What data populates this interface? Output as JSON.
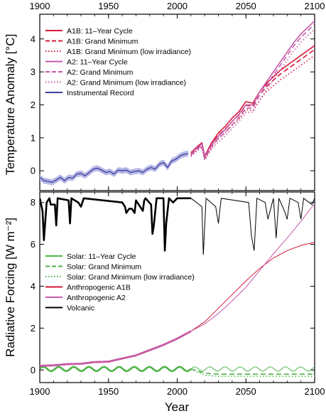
{
  "chart_data": [
    {
      "type": "line",
      "panel": "top",
      "ylabel": "Temperature Anomaly [°C]",
      "xlim": [
        1900,
        2100
      ],
      "ylim": [
        -0.6,
        4.75
      ],
      "x_ticks": [
        1900,
        1950,
        2000,
        2050,
        2100
      ],
      "y_ticks": [
        0,
        1,
        2,
        3,
        4
      ],
      "legend_position": "top-left",
      "colors": {
        "a1b": "#d6183a",
        "a2": "#c45aa8",
        "instrumental": "#3d3d9c",
        "instrumental_band": "#b7b7e6"
      },
      "series": [
        {
          "name": "A1B: 11–Year Cycle",
          "style": "solid",
          "color": "#d6183a",
          "x": [
            2010,
            2015,
            2018,
            2020,
            2025,
            2030,
            2035,
            2040,
            2045,
            2050,
            2055,
            2060,
            2065,
            2070,
            2075,
            2080,
            2085,
            2090,
            2095,
            2100
          ],
          "y": [
            0.55,
            0.75,
            0.85,
            0.45,
            0.85,
            1.15,
            1.35,
            1.6,
            1.8,
            2.1,
            2.05,
            2.4,
            2.65,
            2.85,
            3.05,
            3.2,
            3.35,
            3.5,
            3.65,
            3.8
          ]
        },
        {
          "name": "A1B: Grand Minimum",
          "style": "dashed",
          "color": "#d6183a",
          "x": [
            2010,
            2015,
            2018,
            2020,
            2025,
            2030,
            2035,
            2040,
            2045,
            2050,
            2055,
            2060,
            2065,
            2070,
            2075,
            2080,
            2085,
            2090,
            2095,
            2100
          ],
          "y": [
            0.5,
            0.7,
            0.8,
            0.42,
            0.8,
            1.08,
            1.27,
            1.5,
            1.7,
            1.99,
            1.95,
            2.3,
            2.55,
            2.75,
            2.93,
            3.08,
            3.23,
            3.38,
            3.53,
            3.68
          ]
        },
        {
          "name": "A1B: Grand Minimum (low irradiance)",
          "style": "dotted",
          "color": "#d6183a",
          "x": [
            2010,
            2015,
            2018,
            2020,
            2025,
            2030,
            2035,
            2040,
            2045,
            2050,
            2055,
            2060,
            2065,
            2070,
            2075,
            2080,
            2085,
            2090,
            2095,
            2100
          ],
          "y": [
            0.45,
            0.65,
            0.72,
            0.35,
            0.7,
            0.98,
            1.15,
            1.38,
            1.57,
            1.86,
            1.82,
            2.15,
            2.4,
            2.58,
            2.76,
            2.9,
            3.05,
            3.2,
            3.35,
            3.5
          ]
        },
        {
          "name": "A2:  11–Year Cycle",
          "style": "solid",
          "color": "#c45aa8",
          "x": [
            2010,
            2015,
            2018,
            2020,
            2025,
            2030,
            2035,
            2040,
            2045,
            2050,
            2055,
            2060,
            2065,
            2070,
            2075,
            2080,
            2085,
            2090,
            2095,
            2100
          ],
          "y": [
            0.52,
            0.72,
            0.82,
            0.42,
            0.8,
            1.05,
            1.25,
            1.5,
            1.72,
            2.0,
            2.0,
            2.4,
            2.7,
            3.0,
            3.3,
            3.6,
            3.9,
            4.15,
            4.35,
            4.55
          ]
        },
        {
          "name": "A2:  Grand Minimum",
          "style": "dashed",
          "color": "#c45aa8",
          "x": [
            2010,
            2015,
            2018,
            2020,
            2025,
            2030,
            2035,
            2040,
            2045,
            2050,
            2055,
            2060,
            2065,
            2070,
            2075,
            2080,
            2085,
            2090,
            2095,
            2100
          ],
          "y": [
            0.48,
            0.68,
            0.77,
            0.38,
            0.75,
            0.98,
            1.17,
            1.4,
            1.62,
            1.9,
            1.9,
            2.3,
            2.6,
            2.9,
            3.2,
            3.5,
            3.8,
            4.05,
            4.25,
            4.45
          ]
        },
        {
          "name": "A2:  Grand Minimum (low irradiance)",
          "style": "dotted",
          "color": "#c45aa8",
          "x": [
            2010,
            2015,
            2018,
            2020,
            2025,
            2030,
            2035,
            2040,
            2045,
            2050,
            2055,
            2060,
            2065,
            2070,
            2075,
            2080,
            2085,
            2090,
            2095,
            2100
          ],
          "y": [
            0.43,
            0.62,
            0.7,
            0.32,
            0.66,
            0.88,
            1.06,
            1.28,
            1.5,
            1.77,
            1.78,
            2.15,
            2.45,
            2.75,
            3.05,
            3.35,
            3.65,
            3.9,
            4.1,
            4.3
          ]
        },
        {
          "name": "Instrumental Record",
          "style": "solid",
          "color": "#3d3d9c",
          "x": [
            1900,
            1903,
            1906,
            1909,
            1912,
            1915,
            1918,
            1921,
            1924,
            1927,
            1930,
            1933,
            1936,
            1939,
            1942,
            1945,
            1948,
            1951,
            1954,
            1957,
            1960,
            1963,
            1966,
            1969,
            1972,
            1975,
            1978,
            1981,
            1984,
            1987,
            1990,
            1993,
            1996,
            1999,
            2002,
            2005,
            2008
          ],
          "y": [
            -0.2,
            -0.3,
            -0.32,
            -0.35,
            -0.28,
            -0.2,
            -0.3,
            -0.2,
            -0.22,
            -0.1,
            -0.08,
            -0.15,
            -0.05,
            0.05,
            0.08,
            0.02,
            -0.05,
            -0.02,
            -0.1,
            0.02,
            0.0,
            0.02,
            -0.05,
            -0.02,
            0.0,
            -0.05,
            0.05,
            0.1,
            0.05,
            0.2,
            0.25,
            0.1,
            0.3,
            0.35,
            0.45,
            0.5,
            0.52
          ]
        }
      ]
    },
    {
      "type": "line",
      "panel": "bottom",
      "xlabel": "Year",
      "ylabel": "Radiative Forcing [W m⁻²]",
      "xlim": [
        1900,
        2100
      ],
      "ylim": [
        -0.6,
        8.5
      ],
      "x_ticks": [
        1900,
        1950,
        2000,
        2050,
        2100
      ],
      "y_ticks": [
        0,
        2,
        4,
        6,
        8
      ],
      "legend_position": "center-left",
      "colors": {
        "solar": "#4fb34a",
        "anthro_a1b": "#d6183a",
        "anthro_a2": "#c45aa8",
        "volcanic": "#000000"
      },
      "series": [
        {
          "name": "Solar: 11–Year Cycle",
          "style": "solid",
          "color": "#4fb34a",
          "x": [
            1900,
            2100
          ],
          "y": [
            0.05,
            0.05
          ],
          "note_cycle": {
            "period_years": 11,
            "amplitude": 0.1
          }
        },
        {
          "name": "Solar: Grand Minimum",
          "style": "dashed",
          "color": "#4fb34a",
          "x": [
            2010,
            2020,
            2030,
            2040,
            2100
          ],
          "y": [
            0.05,
            -0.15,
            -0.2,
            -0.2,
            -0.2
          ]
        },
        {
          "name": "Solar: Grand Minimum (low irradiance)",
          "style": "dotted",
          "color": "#4fb34a",
          "x": [
            2010,
            2020,
            2030,
            2040,
            2100
          ],
          "y": [
            0.05,
            -0.25,
            -0.3,
            -0.3,
            -0.3
          ]
        },
        {
          "name": "Anthropogenic A1B",
          "style": "solid",
          "color": "#d6183a",
          "x": [
            1900,
            1910,
            1920,
            1930,
            1940,
            1950,
            1960,
            1970,
            1980,
            1990,
            2000,
            2010,
            2020,
            2030,
            2040,
            2050,
            2060,
            2070,
            2080,
            2090,
            2100
          ],
          "y": [
            0.2,
            0.22,
            0.28,
            0.3,
            0.38,
            0.4,
            0.55,
            0.7,
            0.95,
            1.2,
            1.5,
            1.85,
            2.3,
            2.95,
            3.6,
            4.25,
            4.85,
            5.35,
            5.7,
            5.95,
            6.1
          ]
        },
        {
          "name": "Anthropogenic A2",
          "style": "solid",
          "color": "#c45aa8",
          "x": [
            1900,
            1910,
            1920,
            1930,
            1940,
            1950,
            1960,
            1970,
            1980,
            1990,
            2000,
            2010,
            2020,
            2030,
            2040,
            2050,
            2060,
            2070,
            2080,
            2090,
            2100
          ],
          "y": [
            0.2,
            0.22,
            0.28,
            0.3,
            0.38,
            0.4,
            0.55,
            0.7,
            0.95,
            1.2,
            1.5,
            1.85,
            2.2,
            2.7,
            3.3,
            3.95,
            4.75,
            5.55,
            6.3,
            7.1,
            7.95
          ]
        },
        {
          "name": "Volcanic",
          "style": "solid",
          "color": "#000000",
          "x": [
            1900,
            1902,
            1903,
            1905,
            1907,
            1908,
            1911,
            1912,
            1913,
            1921,
            1922,
            1923,
            1928,
            1930,
            1932,
            1960,
            1962,
            1963,
            1965,
            1967,
            1969,
            1970,
            1975,
            1976,
            1977,
            1981,
            1982,
            1983,
            1985,
            1986,
            1990,
            1991,
            1992,
            1994,
            1997,
            2000,
            2010,
            2018,
            2019,
            2021,
            2028,
            2030,
            2032,
            2052,
            2054,
            2056,
            2058,
            2064,
            2066,
            2070,
            2072,
            2074,
            2078,
            2080,
            2082,
            2088,
            2090,
            2092,
            2098,
            2100
          ],
          "y": [
            8.2,
            7.6,
            6.2,
            8.0,
            8.2,
            7.9,
            7.9,
            6.9,
            8.2,
            8.1,
            7.0,
            8.2,
            8.0,
            7.8,
            8.2,
            8.0,
            7.8,
            7.5,
            7.7,
            7.7,
            7.5,
            8.1,
            7.6,
            8.1,
            8.2,
            7.9,
            6.5,
            6.9,
            8.2,
            8.2,
            8.2,
            5.7,
            7.0,
            8.2,
            8.0,
            8.2,
            8.2,
            7.8,
            5.5,
            8.2,
            7.8,
            7.0,
            8.2,
            8.0,
            6.4,
            5.7,
            8.2,
            8.0,
            7.2,
            8.2,
            6.3,
            8.2,
            7.6,
            7.2,
            8.2,
            8.0,
            7.2,
            8.2,
            7.9,
            8.2
          ]
        }
      ]
    }
  ]
}
